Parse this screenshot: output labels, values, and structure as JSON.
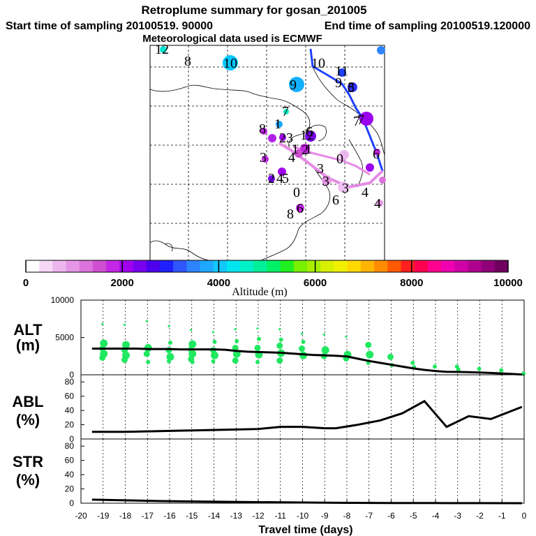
{
  "header": {
    "title": "Retroplume summary for gosan_201005",
    "start_label": "Start time of sampling 20100519. 90000",
    "end_label": "End time of sampling 20100519.120000",
    "met_label": "Meteorological data used is ECMWF"
  },
  "colorbar": {
    "ticks": [
      "0",
      "2000",
      "4000",
      "6000",
      "8000",
      "10000"
    ],
    "label": "Altitude (m)",
    "colors": [
      "#ffffff",
      "#f6d8f6",
      "#eeb6ee",
      "#e596e5",
      "#db73db",
      "#d04fd0",
      "#c427e6",
      "#a000ee",
      "#7a00f0",
      "#4c00ee",
      "#2020ff",
      "#3056ff",
      "#2d84ff",
      "#1ea8ff",
      "#12c8ff",
      "#00e6f0",
      "#00f0c8",
      "#00f09a",
      "#00f066",
      "#20f020",
      "#78f000",
      "#a8f000",
      "#d8f000",
      "#f0f000",
      "#ffd800",
      "#ffb400",
      "#ff8c00",
      "#ff5a00",
      "#ff2020",
      "#ff0050",
      "#ff0090",
      "#f000b0",
      "#d000a8",
      "#b00090",
      "#900078",
      "#700060"
    ]
  },
  "map": {
    "labels": [
      "12",
      "8",
      "10",
      "10",
      "9",
      "9",
      "8",
      "1",
      "7",
      "11",
      "7",
      "8",
      "2",
      "3",
      "12",
      "1",
      "2",
      "3",
      "4",
      "1",
      "0",
      "6",
      "3",
      "3",
      "2",
      "4",
      "5",
      "0",
      "3",
      "4",
      "6",
      "8",
      "6",
      "4",
      "7",
      "5",
      "6"
    ]
  },
  "chart_data": [
    {
      "type": "line+scatter",
      "panel": "ALT",
      "ylabel": "ALT\n(m)",
      "ylabel_lines": [
        "ALT",
        "(m)"
      ],
      "xlabel": "Travel time (days)",
      "xlim": [
        -20,
        0
      ],
      "ylim": [
        0,
        10000
      ],
      "yticks": [
        "10000",
        "5000",
        "0"
      ],
      "xticks": [
        "-20",
        "-19",
        "-18",
        "-17",
        "-16",
        "-15",
        "-14",
        "-13",
        "-12",
        "-11",
        "-10",
        "-9",
        "-8",
        "-7",
        "-6",
        "-5",
        "-4",
        "-3",
        "-2",
        "-1",
        "0"
      ],
      "line": {
        "x": [
          -19.5,
          -19,
          -18.5,
          -18,
          -17.5,
          -17,
          -16.5,
          -16,
          -15.5,
          -15,
          -14.5,
          -14,
          -13.5,
          -13,
          -12.5,
          -12,
          -11.5,
          -11,
          -10.5,
          -10,
          -9.5,
          -9,
          -8.5,
          -8,
          -7.5,
          -7,
          -6.5,
          -6,
          -5.5,
          -5,
          -4.5,
          -4,
          -3.5,
          -3,
          -2.5,
          -2,
          -1.5,
          -1,
          -0.5,
          -0.1
        ],
        "y": [
          3500,
          3500,
          3500,
          3500,
          3500,
          3450,
          3450,
          3450,
          3400,
          3400,
          3400,
          3400,
          3350,
          3200,
          3100,
          3050,
          3000,
          2950,
          2850,
          2750,
          2650,
          2600,
          2550,
          2450,
          2150,
          1850,
          1600,
          1350,
          1100,
          850,
          650,
          500,
          400,
          380,
          350,
          300,
          250,
          180,
          100,
          30
        ]
      },
      "clusters": [
        {
          "x": -19,
          "y": [
            6800,
            4200,
            3500,
            2800,
            2300
          ]
        },
        {
          "x": -18,
          "y": [
            6700,
            4000,
            3300,
            2600,
            2000
          ]
        },
        {
          "x": -17,
          "y": [
            7200,
            3600,
            2800,
            1700
          ]
        },
        {
          "x": -16,
          "y": [
            6500,
            4300,
            3300,
            2400,
            1800
          ]
        },
        {
          "x": -15,
          "y": [
            6000,
            4100,
            3400,
            2800,
            2100,
            1700
          ]
        },
        {
          "x": -14,
          "y": [
            5700,
            4400,
            3300,
            2600,
            1800
          ]
        },
        {
          "x": -13,
          "y": [
            6100,
            4500,
            3600,
            2800,
            1900
          ]
        },
        {
          "x": -12,
          "y": [
            6200,
            4800,
            3600,
            2700,
            1700
          ]
        },
        {
          "x": -11,
          "y": [
            6100,
            4700,
            3900,
            2900,
            1900
          ]
        },
        {
          "x": -10,
          "y": [
            5500,
            4400,
            3500,
            2600
          ]
        },
        {
          "x": -9,
          "y": [
            5400,
            3300,
            2500
          ]
        },
        {
          "x": -8,
          "y": [
            5100,
            2700,
            2200
          ]
        },
        {
          "x": -7,
          "y": [
            4000,
            2700,
            1600
          ]
        },
        {
          "x": -6,
          "y": [
            2400,
            1300
          ]
        },
        {
          "x": -5,
          "y": [
            1600,
            1000
          ]
        },
        {
          "x": -4,
          "y": [
            1100
          ]
        },
        {
          "x": -3,
          "y": [
            1100,
            700
          ]
        },
        {
          "x": -2,
          "y": [
            800
          ]
        },
        {
          "x": -1,
          "y": [
            600
          ]
        },
        {
          "x": 0,
          "y": [
            150
          ]
        }
      ]
    },
    {
      "type": "line",
      "panel": "ABL",
      "ylabel_lines": [
        "ABL",
        "(%)"
      ],
      "ylim": [
        0,
        90
      ],
      "yticks": [
        "80",
        "60",
        "40",
        "20",
        "0"
      ],
      "x": [
        -19.5,
        -18,
        -16.5,
        -15,
        -13.5,
        -12,
        -11,
        -10,
        -9,
        -8.5,
        -7.5,
        -6.5,
        -5.5,
        -4.5,
        -3.5,
        -2.5,
        -1.5,
        -0.1
      ],
      "y": [
        10,
        10,
        11,
        12,
        13,
        14,
        17,
        17,
        15,
        15,
        20,
        26,
        36,
        53,
        17,
        32,
        28,
        45
      ]
    },
    {
      "type": "line",
      "panel": "STR",
      "ylabel_lines": [
        "STR",
        "(%)"
      ],
      "ylim": [
        0,
        90
      ],
      "yticks": [
        "80",
        "60",
        "40",
        "20",
        "0"
      ],
      "x": [
        -19.5,
        -18,
        -16.5,
        -15,
        -13.5,
        -12,
        -10,
        -8,
        -6,
        -4,
        -2,
        -0.1
      ],
      "y": [
        5,
        4,
        3,
        2.5,
        2,
        1.5,
        1,
        0.5,
        0.3,
        0.2,
        0.1,
        0
      ]
    }
  ]
}
